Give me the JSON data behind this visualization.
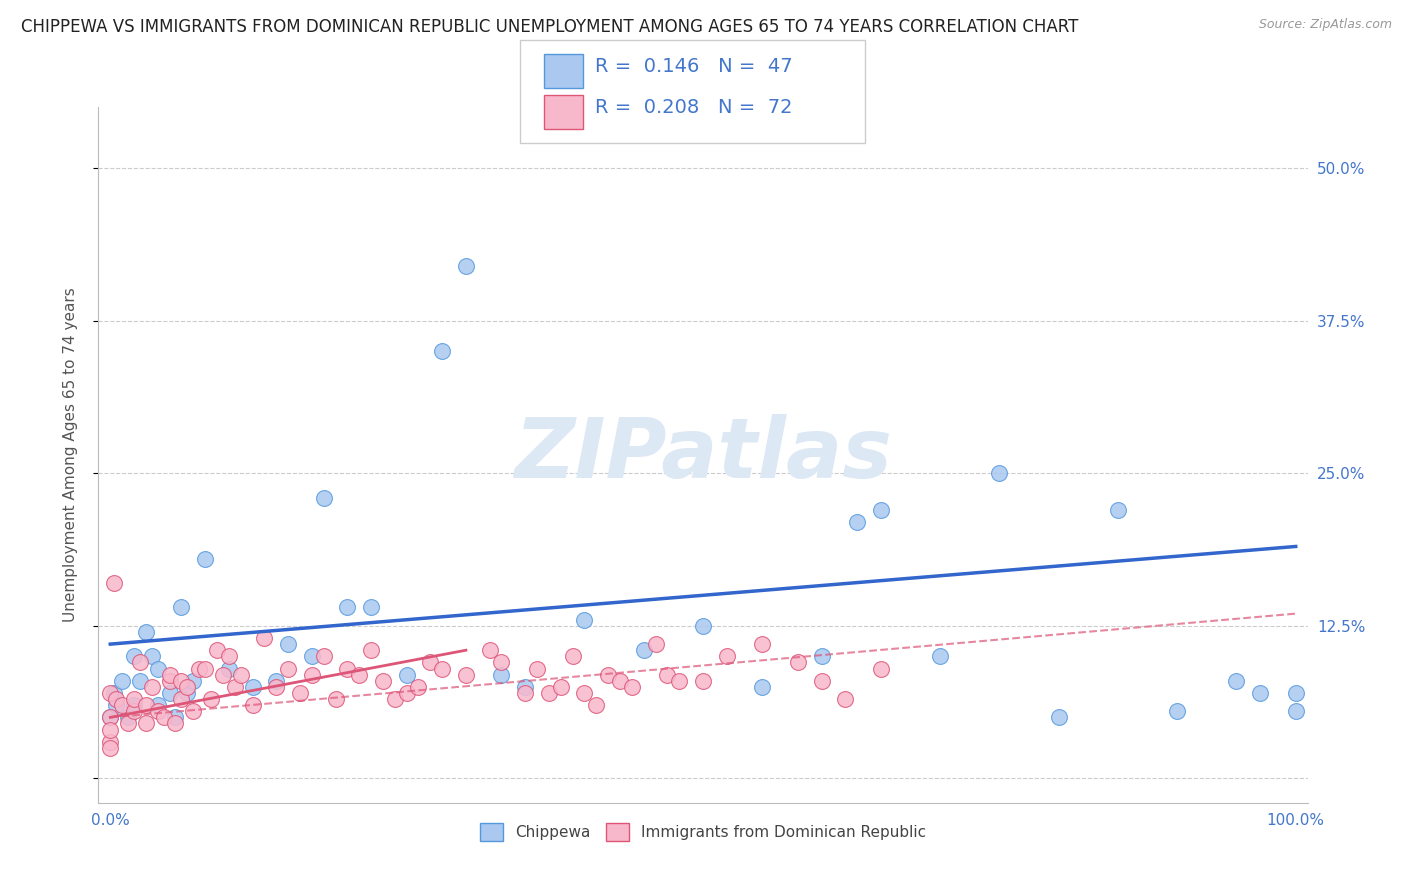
{
  "title": "CHIPPEWA VS IMMIGRANTS FROM DOMINICAN REPUBLIC UNEMPLOYMENT AMONG AGES 65 TO 74 YEARS CORRELATION CHART",
  "source": "Source: ZipAtlas.com",
  "ylabel": "Unemployment Among Ages 65 to 74 years",
  "watermark": "ZIPatlas",
  "series": [
    {
      "name": "Chippewa",
      "color": "#aac8f0",
      "edge_color": "#5599dd",
      "R": "0.146",
      "N": 47,
      "trend_color": "#3366cc",
      "trend_style": "solid",
      "x": [
        0.0,
        0.3,
        0.5,
        1.0,
        1.5,
        2.0,
        2.0,
        2.5,
        3.0,
        3.5,
        4.0,
        4.0,
        5.0,
        5.5,
        6.0,
        6.5,
        7.0,
        8.0,
        10.0,
        12.0,
        14.0,
        15.0,
        17.0,
        18.0,
        20.0,
        22.0,
        25.0,
        28.0,
        30.0,
        33.0,
        35.0,
        40.0,
        45.0,
        50.0,
        55.0,
        60.0,
        63.0,
        65.0,
        70.0,
        75.0,
        80.0,
        85.0,
        90.0,
        95.0,
        97.0,
        100.0,
        100.0
      ],
      "y": [
        5.0,
        7.0,
        6.0,
        8.0,
        5.0,
        6.0,
        10.0,
        8.0,
        12.0,
        10.0,
        6.0,
        9.0,
        7.0,
        5.0,
        14.0,
        7.0,
        8.0,
        18.0,
        9.0,
        7.5,
        8.0,
        11.0,
        10.0,
        23.0,
        14.0,
        14.0,
        8.5,
        35.0,
        42.0,
        8.5,
        7.5,
        13.0,
        10.5,
        12.5,
        7.5,
        10.0,
        21.0,
        22.0,
        10.0,
        25.0,
        5.0,
        22.0,
        5.5,
        8.0,
        7.0,
        5.5,
        7.0
      ],
      "trend_x0": 0.0,
      "trend_x1": 100.0,
      "trend_y0": 11.0,
      "trend_y1": 19.0
    },
    {
      "name": "Immigrants from Dominican Republic",
      "color": "#f8b8cc",
      "edge_color": "#dd5577",
      "R": "0.208",
      "N": 72,
      "trend_color": "#dd5577",
      "trend_style": "dashed",
      "x": [
        0.0,
        0.0,
        0.3,
        0.5,
        1.0,
        1.5,
        2.0,
        2.0,
        2.5,
        3.0,
        3.0,
        3.5,
        4.0,
        4.5,
        5.0,
        5.0,
        5.5,
        6.0,
        6.0,
        6.5,
        7.0,
        7.5,
        8.0,
        8.5,
        9.0,
        9.5,
        10.0,
        10.5,
        11.0,
        12.0,
        13.0,
        14.0,
        15.0,
        16.0,
        17.0,
        18.0,
        19.0,
        20.0,
        21.0,
        22.0,
        23.0,
        24.0,
        25.0,
        26.0,
        27.0,
        28.0,
        30.0,
        32.0,
        33.0,
        35.0,
        36.0,
        37.0,
        38.0,
        39.0,
        40.0,
        41.0,
        42.0,
        43.0,
        44.0,
        46.0,
        47.0,
        48.0,
        50.0,
        52.0,
        55.0,
        58.0,
        60.0,
        62.0,
        65.0,
        0.0,
        0.0,
        0.0
      ],
      "y": [
        5.0,
        7.0,
        16.0,
        6.5,
        6.0,
        4.5,
        5.5,
        6.5,
        9.5,
        4.5,
        6.0,
        7.5,
        5.5,
        5.0,
        8.0,
        8.5,
        4.5,
        6.5,
        8.0,
        7.5,
        5.5,
        9.0,
        9.0,
        6.5,
        10.5,
        8.5,
        10.0,
        7.5,
        8.5,
        6.0,
        11.5,
        7.5,
        9.0,
        7.0,
        8.5,
        10.0,
        6.5,
        9.0,
        8.5,
        10.5,
        8.0,
        6.5,
        7.0,
        7.5,
        9.5,
        9.0,
        8.5,
        10.5,
        9.5,
        7.0,
        9.0,
        7.0,
        7.5,
        10.0,
        7.0,
        6.0,
        8.5,
        8.0,
        7.5,
        11.0,
        8.5,
        8.0,
        8.0,
        10.0,
        11.0,
        9.5,
        8.0,
        6.5,
        9.0,
        3.0,
        4.0,
        2.5
      ],
      "trend_solid_x0": 0.0,
      "trend_solid_x1": 30.0,
      "trend_solid_y0": 5.0,
      "trend_solid_y1": 10.5,
      "trend_x0": 0.0,
      "trend_x1": 100.0,
      "trend_y0": 5.0,
      "trend_y1": 13.5
    }
  ],
  "xlim": [
    -1,
    101
  ],
  "ylim": [
    -2,
    55
  ],
  "yticks": [
    0,
    12.5,
    25.0,
    37.5,
    50.0
  ],
  "ytick_labels_right": [
    "",
    "12.5%",
    "25.0%",
    "37.5%",
    "50.0%"
  ],
  "xticks": [
    0,
    100
  ],
  "xtick_labels": [
    "0.0%",
    "100.0%"
  ],
  "background_color": "#ffffff",
  "grid_color": "#cccccc",
  "title_fontsize": 12,
  "axis_label_fontsize": 11,
  "tick_fontsize": 11,
  "legend_fontsize": 14,
  "watermark_fontsize": 60,
  "watermark_color": "#dde8f5",
  "tick_color": "#4477cc"
}
